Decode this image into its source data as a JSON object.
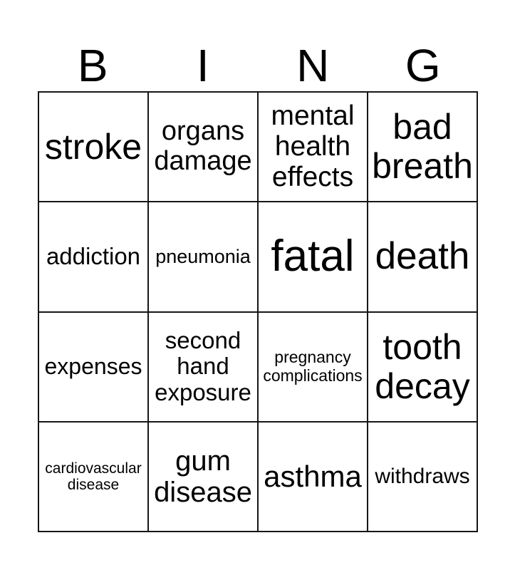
{
  "title": {
    "letters": [
      "B",
      "I",
      "N",
      "G"
    ]
  },
  "card": {
    "rows": [
      {
        "cells": [
          {
            "text": "stroke",
            "font_px": 50
          },
          {
            "text": "organs\ndamage",
            "font_px": 38
          },
          {
            "text": "mental\nhealth\neffects",
            "font_px": 39
          },
          {
            "text": "bad\nbreath",
            "font_px": 50
          }
        ]
      },
      {
        "cells": [
          {
            "text": "addiction",
            "font_px": 33
          },
          {
            "text": "pneumonia",
            "font_px": 27
          },
          {
            "text": "fatal",
            "font_px": 62
          },
          {
            "text": "death",
            "font_px": 53
          }
        ]
      },
      {
        "cells": [
          {
            "text": "expenses",
            "font_px": 32
          },
          {
            "text": "second\nhand\nexposure",
            "font_px": 33
          },
          {
            "text": "pregnancy\ncomplications",
            "font_px": 23
          },
          {
            "text": "tooth\ndecay",
            "font_px": 50
          }
        ]
      },
      {
        "cells": [
          {
            "text": "cardiovascular\ndisease",
            "font_px": 21
          },
          {
            "text": "gum\ndisease",
            "font_px": 40
          },
          {
            "text": "asthma",
            "font_px": 42
          },
          {
            "text": "withdraws",
            "font_px": 30
          }
        ]
      }
    ]
  },
  "colors": {
    "background": "#ffffff",
    "grid_line": "#161616",
    "text": "#000000"
  }
}
